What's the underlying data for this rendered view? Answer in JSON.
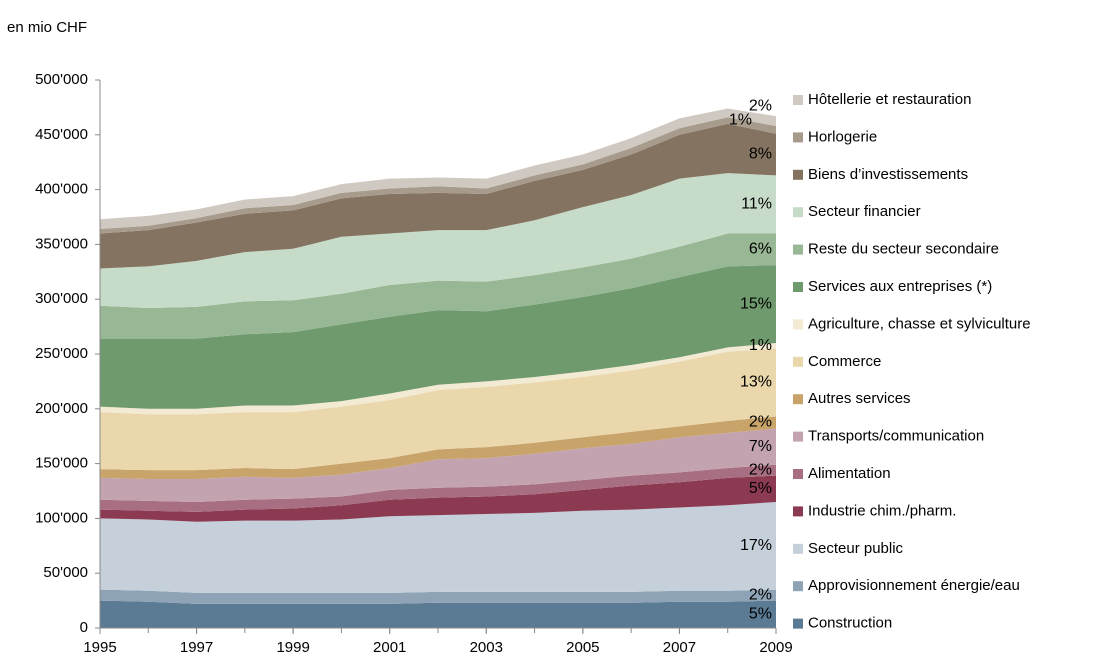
{
  "chart_data": {
    "type": "stacked_area",
    "y_axis_label": "en mio CHF",
    "x": [
      1995,
      1996,
      1997,
      1998,
      1999,
      2000,
      2001,
      2002,
      2003,
      2004,
      2005,
      2006,
      2007,
      2008,
      2009
    ],
    "xlim": [
      1995,
      2009
    ],
    "xticks": [
      1995,
      1997,
      1999,
      2001,
      2003,
      2005,
      2007,
      2009
    ],
    "ylim": [
      0,
      500000
    ],
    "yticks": [
      0,
      {
        "value": 50000,
        "label": "50'000"
      },
      {
        "value": 100000,
        "label": "100'000"
      },
      {
        "value": 150000,
        "label": "150'000"
      },
      {
        "value": 200000,
        "label": "200'000"
      },
      {
        "value": 250000,
        "label": "250'000"
      },
      {
        "value": 300000,
        "label": "300'000"
      },
      {
        "value": 350000,
        "label": "350'000"
      },
      {
        "value": 400000,
        "label": "400'000"
      },
      {
        "value": 450000,
        "label": "450'000"
      },
      {
        "value": 500000,
        "label": "500'000"
      }
    ],
    "series": [
      {
        "name": "Construction",
        "color": "#5b7a93",
        "share_label": "5%",
        "values": [
          25000,
          24000,
          22000,
          22000,
          22000,
          22000,
          22000,
          23000,
          23000,
          23000,
          23000,
          23000,
          24000,
          24000,
          25000
        ]
      },
      {
        "name": "Approvisionnement énergie/eau",
        "color": "#8ea4b6",
        "share_label": "2%",
        "values": [
          10000,
          10000,
          10000,
          10000,
          10000,
          10000,
          10000,
          10000,
          10000,
          10000,
          10000,
          10000,
          10000,
          10000,
          10000
        ]
      },
      {
        "name": "Secteur public",
        "color": "#c5d0da",
        "share_label": "17%",
        "values": [
          65000,
          65000,
          65000,
          66000,
          66000,
          67000,
          70000,
          70000,
          71000,
          72000,
          74000,
          75000,
          76000,
          78000,
          80000
        ]
      },
      {
        "name": "Industrie chim./pharm.",
        "color": "#8b3a52",
        "share_label": "5%",
        "values": [
          8000,
          8000,
          9000,
          10000,
          11000,
          13000,
          15000,
          16000,
          16000,
          17000,
          19000,
          22000,
          23000,
          25000,
          24000
        ]
      },
      {
        "name": "Alimentation",
        "color": "#a86f82",
        "share_label": "2%",
        "values": [
          9000,
          9000,
          9000,
          9000,
          9000,
          8000,
          9000,
          9000,
          9000,
          9000,
          9000,
          9000,
          9000,
          9000,
          10000
        ]
      },
      {
        "name": "Transports/communication",
        "color": "#c4a3b1",
        "share_label": "7%",
        "values": [
          20000,
          20000,
          21000,
          21000,
          19000,
          20000,
          20000,
          26000,
          26000,
          28000,
          29000,
          29000,
          32000,
          32000,
          33000
        ]
      },
      {
        "name": "Autres services",
        "color": "#c8a46a",
        "share_label": "2%",
        "values": [
          8000,
          8000,
          8000,
          8000,
          8000,
          10000,
          9000,
          9000,
          10000,
          10000,
          10000,
          11000,
          10000,
          11000,
          11000
        ]
      },
      {
        "name": "Commerce",
        "color": "#ead7ac",
        "share_label": "13%",
        "values": [
          52000,
          51000,
          51000,
          51000,
          52000,
          52000,
          53000,
          54000,
          55000,
          55000,
          55000,
          56000,
          59000,
          63000,
          62000
        ]
      },
      {
        "name": "Agriculture, chasse et sylviculture",
        "color": "#f3ead4",
        "share_label": "1%",
        "values": [
          5000,
          5000,
          5000,
          6000,
          6000,
          5000,
          6000,
          5000,
          5000,
          5000,
          5000,
          5000,
          4000,
          4000,
          5000
        ]
      },
      {
        "name": "Services aux entreprises (*)",
        "color": "#6e9a6e",
        "share_label": "15%",
        "values": [
          62000,
          64000,
          64000,
          65000,
          67000,
          70000,
          70000,
          68000,
          64000,
          66000,
          68000,
          70000,
          73000,
          74000,
          71000
        ]
      },
      {
        "name": "Reste du secteur secondaire",
        "color": "#98b895",
        "share_label": "6%",
        "values": [
          30000,
          28000,
          29000,
          30000,
          29000,
          28000,
          29000,
          27000,
          27000,
          27000,
          27000,
          27000,
          28000,
          30000,
          29000
        ]
      },
      {
        "name": "Secteur financier",
        "color": "#c7dcc8",
        "share_label": "11%",
        "values": [
          34000,
          38000,
          42000,
          45000,
          47000,
          52000,
          47000,
          46000,
          47000,
          50000,
          55000,
          58000,
          62000,
          55000,
          53000
        ]
      },
      {
        "name": "Biens d’investissements",
        "color": "#857361",
        "share_label": "8%",
        "values": [
          32000,
          33000,
          35000,
          35000,
          35000,
          35000,
          36000,
          34000,
          33000,
          36000,
          34000,
          37000,
          40000,
          45000,
          38000
        ]
      },
      {
        "name": "Horlogerie",
        "color": "#a79b8c",
        "share_label": "1%",
        "values": [
          4000,
          4000,
          4000,
          5000,
          5000,
          5000,
          5000,
          6000,
          5000,
          5000,
          5000,
          6000,
          6000,
          6000,
          7000
        ]
      },
      {
        "name": "Hôtellerie et restauration",
        "color": "#d0c9c1",
        "share_label": "2%",
        "values": [
          9000,
          9000,
          8000,
          8000,
          8000,
          8000,
          9000,
          8000,
          9000,
          9000,
          9000,
          9000,
          9000,
          8000,
          9000
        ]
      }
    ]
  }
}
